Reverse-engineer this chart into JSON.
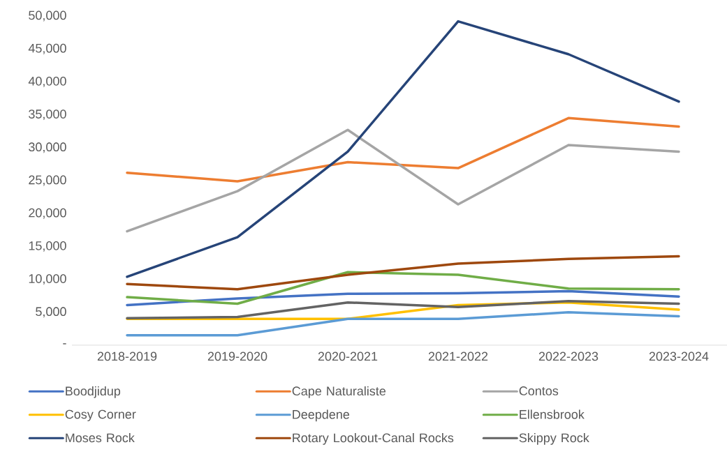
{
  "chart_data": {
    "type": "line",
    "categories": [
      "2018-2019",
      "2019-2020",
      "2020-2021",
      "2021-2022",
      "2022-2023",
      "2023-2024"
    ],
    "series": [
      {
        "name": "Boodjidup",
        "color": "#4472c4",
        "values": [
          6100,
          7100,
          7800,
          7900,
          8200,
          7400
        ]
      },
      {
        "name": "Cape Naturaliste",
        "color": "#ed7d31",
        "values": [
          26200,
          24900,
          27800,
          26900,
          34500,
          33200
        ]
      },
      {
        "name": "Contos",
        "color": "#a5a5a5",
        "values": [
          17300,
          23400,
          32700,
          21400,
          30400,
          29400
        ]
      },
      {
        "name": "Cosy Corner",
        "color": "#ffc000",
        "values": [
          4000,
          4000,
          4000,
          6100,
          6500,
          5400
        ]
      },
      {
        "name": "Deepdene",
        "color": "#5b9bd5",
        "values": [
          1500,
          1500,
          4000,
          4000,
          5000,
          4400
        ]
      },
      {
        "name": "Ellensbrook",
        "color": "#70ad47",
        "values": [
          7300,
          6300,
          11100,
          10700,
          8600,
          8500
        ]
      },
      {
        "name": "Moses Rock",
        "color": "#264478",
        "values": [
          10400,
          16400,
          29400,
          49200,
          44200,
          37000
        ]
      },
      {
        "name": "Rotary Lookout-Canal Rocks",
        "color": "#9e480e",
        "values": [
          9300,
          8500,
          10700,
          12400,
          13100,
          13500
        ]
      },
      {
        "name": "Skippy Rock",
        "color": "#636363",
        "values": [
          4100,
          4300,
          6500,
          5800,
          6700,
          6300
        ]
      }
    ],
    "ylim": [
      0,
      50000
    ],
    "yticks": [
      {
        "value": 0,
        "label": "-"
      },
      {
        "value": 5000,
        "label": "5,000"
      },
      {
        "value": 10000,
        "label": "10,000"
      },
      {
        "value": 15000,
        "label": "15,000"
      },
      {
        "value": 20000,
        "label": "20,000"
      },
      {
        "value": 25000,
        "label": "25,000"
      },
      {
        "value": 30000,
        "label": "30,000"
      },
      {
        "value": 35000,
        "label": "35,000"
      },
      {
        "value": 40000,
        "label": "40,000"
      },
      {
        "value": 45000,
        "label": "45,000"
      },
      {
        "value": 50000,
        "label": "50,000"
      }
    ],
    "grid": false,
    "legend": "bottom",
    "marker": "none",
    "line_style": "solid"
  }
}
